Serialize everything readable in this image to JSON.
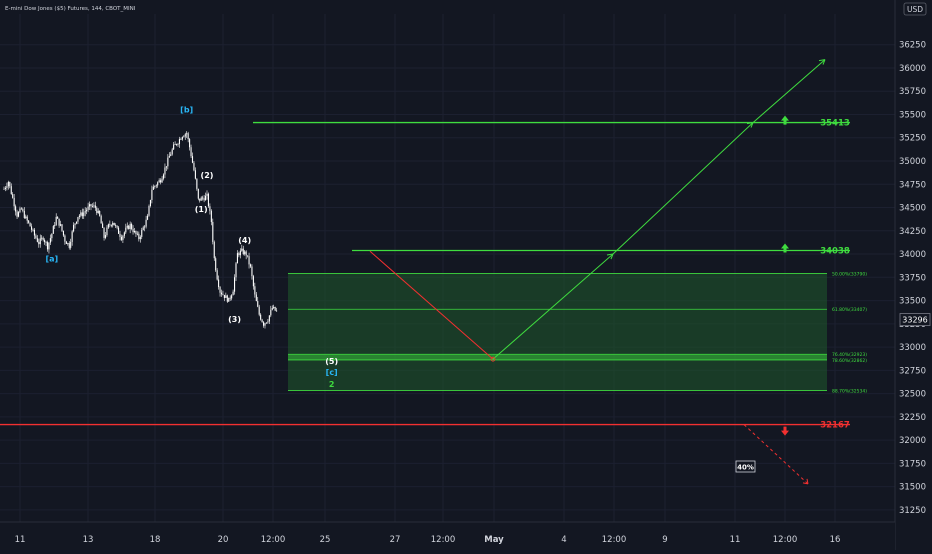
{
  "header": {
    "title": "E-mini Dow Jones ($5) Futures, 144, CBOT_MINI",
    "currency": "USD"
  },
  "colors": {
    "background": "#131722",
    "grid": "#1c2030",
    "text": "#d1d4dc",
    "green": "#3fdc3f",
    "red": "#f23030",
    "zone_fill": "#1f5a2c",
    "cyan": "#29b6f6",
    "candle": "#ffffff"
  },
  "chart_data": {
    "type": "candlestick",
    "title": "E-mini Dow Jones ($5) Futures, 144, CBOT_MINI",
    "ylim": [
      31120,
      36580
    ],
    "y_ticks": [
      36250,
      36000,
      35750,
      35500,
      35250,
      35000,
      34750,
      34500,
      34250,
      34000,
      33750,
      33500,
      33250,
      33000,
      32750,
      32500,
      32250,
      32000,
      31750,
      31500,
      31250
    ],
    "x_ticks": [
      "11",
      "13",
      "18",
      "20",
      "12:00",
      "25",
      "27",
      "12:00",
      "May",
      "4",
      "12:00",
      "9",
      "11",
      "12:00",
      "16"
    ],
    "last_price": "33296",
    "price_path": [
      [
        0,
        34700
      ],
      [
        3,
        34780
      ],
      [
        6,
        34600
      ],
      [
        9,
        34420
      ],
      [
        12,
        34480
      ],
      [
        15,
        34380
      ],
      [
        18,
        34300
      ],
      [
        21,
        34200
      ],
      [
        24,
        34120
      ],
      [
        27,
        34180
      ],
      [
        30,
        34080
      ],
      [
        33,
        34220
      ],
      [
        36,
        34390
      ],
      [
        39,
        34300
      ],
      [
        42,
        34150
      ],
      [
        45,
        34090
      ],
      [
        48,
        34300
      ],
      [
        51,
        34410
      ],
      [
        54,
        34430
      ],
      [
        57,
        34480
      ],
      [
        60,
        34520
      ],
      [
        63,
        34500
      ],
      [
        66,
        34400
      ],
      [
        69,
        34180
      ],
      [
        72,
        34300
      ],
      [
        75,
        34350
      ],
      [
        78,
        34260
      ],
      [
        81,
        34180
      ],
      [
        84,
        34260
      ],
      [
        87,
        34310
      ],
      [
        90,
        34230
      ],
      [
        93,
        34170
      ],
      [
        96,
        34280
      ],
      [
        99,
        34390
      ],
      [
        102,
        34700
      ],
      [
        105,
        34750
      ],
      [
        108,
        34800
      ],
      [
        111,
        34920
      ],
      [
        114,
        35050
      ],
      [
        117,
        35150
      ],
      [
        120,
        35210
      ],
      [
        123,
        35280
      ],
      [
        126,
        35300
      ],
      [
        128,
        35150
      ],
      [
        131,
        34900
      ],
      [
        134,
        34580
      ],
      [
        137,
        34600
      ],
      [
        140,
        34620
      ],
      [
        143,
        34350
      ],
      [
        145,
        33950
      ],
      [
        147,
        33750
      ],
      [
        149,
        33600
      ],
      [
        152,
        33550
      ],
      [
        155,
        33500
      ],
      [
        158,
        33620
      ],
      [
        161,
        34000
      ],
      [
        164,
        34030
      ],
      [
        167,
        34000
      ],
      [
        170,
        33850
      ],
      [
        173,
        33550
      ],
      [
        176,
        33350
      ],
      [
        179,
        33250
      ],
      [
        182,
        33300
      ],
      [
        185,
        33420
      ],
      [
        188,
        33380
      ]
    ],
    "wave_labels": [
      {
        "text": "[b]",
        "price": 35520,
        "idx": 126,
        "color": "cyan"
      },
      {
        "text": "[a]",
        "price": 33920,
        "idx": 33,
        "color": "cyan"
      },
      {
        "text": "(2)",
        "price": 34820,
        "idx": 140,
        "color": "white"
      },
      {
        "text": "(1)",
        "price": 34450,
        "idx": 136,
        "color": "white"
      },
      {
        "text": "(4)",
        "price": 34120,
        "idx": 166,
        "color": "white"
      },
      {
        "text": "(3)",
        "price": 33270,
        "idx": 159,
        "color": "white"
      },
      {
        "text": "(5)",
        "price": 32820,
        "idx": 226,
        "color": "white"
      },
      {
        "text": "[c]",
        "price": 32700,
        "idx": 226,
        "color": "cyan"
      },
      {
        "text": "2",
        "price": 32570,
        "idx": 226,
        "color": "green"
      }
    ],
    "levels": [
      {
        "price": 35413,
        "label": "35413",
        "color": "green",
        "arrow": "up"
      },
      {
        "price": 34038,
        "label": "34038",
        "color": "green",
        "arrow": "up"
      },
      {
        "price": 32167,
        "label": "32167",
        "color": "red",
        "arrow": "down"
      }
    ],
    "fib_zone": {
      "top": 33790,
      "bottom": 32534,
      "lines": [
        {
          "price": 33790,
          "label": "50.00%(33790)"
        },
        {
          "price": 33407,
          "label": "61.80%(33407)"
        },
        {
          "price": 32923,
          "label": "76.40%(32923)"
        },
        {
          "price": 32862,
          "label": "78.60%(32862)"
        },
        {
          "price": 32534,
          "label": "88.70%(32534)"
        }
      ]
    },
    "projection": {
      "probability": "40%"
    }
  }
}
